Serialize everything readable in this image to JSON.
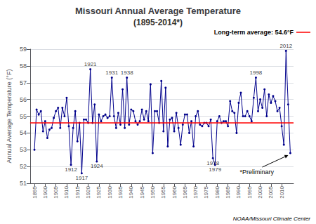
{
  "chart_data": {
    "type": "line",
    "title": "Missouri Annual Average Temperature",
    "subtitle": "(1895-2014*)",
    "ylabel": "Annual Average Temperature (°F)",
    "color": "#00008B",
    "x": [
      1895,
      1896,
      1897,
      1898,
      1899,
      1900,
      1901,
      1902,
      1903,
      1904,
      1905,
      1906,
      1907,
      1908,
      1909,
      1910,
      1911,
      1912,
      1913,
      1914,
      1915,
      1916,
      1917,
      1918,
      1919,
      1920,
      1921,
      1922,
      1923,
      1924,
      1925,
      1926,
      1927,
      1928,
      1929,
      1930,
      1931,
      1932,
      1933,
      1934,
      1935,
      1936,
      1937,
      1938,
      1939,
      1940,
      1941,
      1942,
      1943,
      1944,
      1945,
      1946,
      1947,
      1948,
      1949,
      1950,
      1951,
      1952,
      1953,
      1954,
      1955,
      1956,
      1957,
      1958,
      1959,
      1960,
      1961,
      1962,
      1963,
      1964,
      1965,
      1966,
      1967,
      1968,
      1969,
      1970,
      1971,
      1972,
      1973,
      1974,
      1975,
      1976,
      1977,
      1978,
      1979,
      1980,
      1981,
      1982,
      1983,
      1984,
      1985,
      1986,
      1987,
      1988,
      1989,
      1990,
      1991,
      1992,
      1993,
      1994,
      1995,
      1996,
      1997,
      1998,
      1999,
      2000,
      2001,
      2002,
      2003,
      2004,
      2005,
      2006,
      2007,
      2008,
      2009,
      2010,
      2011,
      2012,
      2013,
      2014
    ],
    "values": [
      53.0,
      55.4,
      55.1,
      55.3,
      54.1,
      54.7,
      53.7,
      54.2,
      54.3,
      54.9,
      55.3,
      55.5,
      54.3,
      55.5,
      55.0,
      56.1,
      54.4,
      52.1,
      54.3,
      55.3,
      53.5,
      54.6,
      51.6,
      54.8,
      54.8,
      54.6,
      57.8,
      54.6,
      55.7,
      52.3,
      55.1,
      54.7,
      55.0,
      55.1,
      54.9,
      55.0,
      57.3,
      55.0,
      54.3,
      55.2,
      54.5,
      56.6,
      54.3,
      57.3,
      54.5,
      55.4,
      55.3,
      54.7,
      54.5,
      54.7,
      55.4,
      54.8,
      55.3,
      54.7,
      56.9,
      52.8,
      55.3,
      55.3,
      54.6,
      57.1,
      54.1,
      56.7,
      53.2,
      54.8,
      54.9,
      54.1,
      55.2,
      54.3,
      53.3,
      54.5,
      55.1,
      55.1,
      54.0,
      54.7,
      53.2,
      55.0,
      55.3,
      54.5,
      54.4,
      54.6,
      54.6,
      54.4,
      54.8,
      52.5,
      52.1,
      54.7,
      55.0,
      54.6,
      54.7,
      54.7,
      54.4,
      55.9,
      55.3,
      55.2,
      54.0,
      55.8,
      56.4,
      55.0,
      55.0,
      55.3,
      55.0,
      54.7,
      56.1,
      57.3,
      55.3,
      56.0,
      55.5,
      56.6,
      55.0,
      56.3,
      55.8,
      56.2,
      55.9,
      55.3,
      55.5,
      54.4,
      53.3,
      58.9,
      55.7,
      52.8
    ],
    "xlim": [
      1893,
      2015.5
    ],
    "xticks": [
      1895,
      1900,
      1905,
      1910,
      1915,
      1920,
      1925,
      1930,
      1935,
      1940,
      1945,
      1950,
      1955,
      1960,
      1965,
      1970,
      1975,
      1980,
      1985,
      1990,
      1995,
      2000,
      2005,
      2010
    ],
    "ylim": [
      51,
      59
    ],
    "yticks": [
      51,
      52,
      53,
      54,
      55,
      56,
      57,
      58,
      59
    ],
    "grid": true,
    "reference_lines": [
      {
        "y": 54.6,
        "label": "Long-term average: 54.6°F",
        "color": "#FF0000"
      }
    ],
    "annotations": [
      {
        "text": "1912",
        "x": 1912,
        "y": 52.1
      },
      {
        "text": "1917",
        "x": 1917,
        "y": 51.6
      },
      {
        "text": "1921",
        "x": 1921,
        "y": 57.8
      },
      {
        "text": "1924",
        "x": 1924,
        "y": 52.3
      },
      {
        "text": "1931",
        "x": 1931,
        "y": 57.3
      },
      {
        "text": "1938",
        "x": 1938,
        "y": 57.3
      },
      {
        "text": "1978",
        "x": 1978,
        "y": 52.5
      },
      {
        "text": "1979",
        "x": 1979,
        "y": 52.1
      },
      {
        "text": "1998",
        "x": 1998,
        "y": 57.3
      },
      {
        "text": "2012",
        "x": 2012,
        "y": 58.9
      }
    ],
    "arrow_annotations": [
      {
        "text": "*Preliminary",
        "x": 2014,
        "y": 52.8
      }
    ],
    "caption": "NOAA/Missouri Climate Center"
  }
}
